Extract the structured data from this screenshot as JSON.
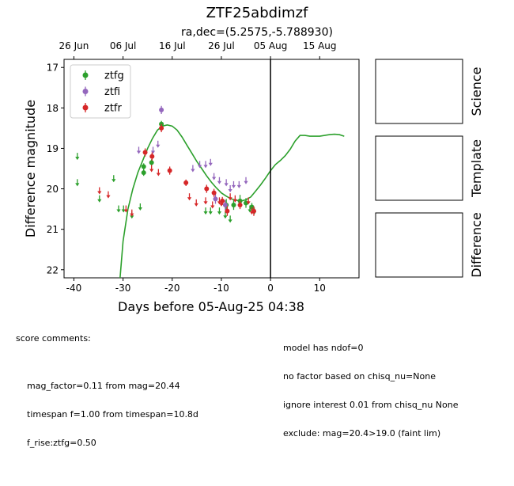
{
  "chart_data": {
    "type": "scatter",
    "title": "ZTF25abdimzf",
    "subtitle": "ra,dec=(5.2575,-5.788930)",
    "xlabel": "Days before 05-Aug-25 04:38",
    "ylabel": "Difference magnitude",
    "xlim": [
      -42,
      18
    ],
    "ylim": [
      22.2,
      16.8
    ],
    "y_inverted": true,
    "xticks": [
      -40,
      -30,
      -20,
      -10,
      0,
      10
    ],
    "yticks": [
      17,
      18,
      19,
      20,
      21,
      22
    ],
    "top_axis_labels": [
      "26 Jun",
      "06 Jul",
      "16 Jul",
      "26 Jul",
      "05 Aug",
      "15 Aug"
    ],
    "top_axis_positions": [
      -40,
      -30,
      -20,
      -10,
      0,
      10
    ],
    "vline_x": 0,
    "legend_position": "upper-left",
    "legend": [
      "ztfg",
      "ztfi",
      "ztfr"
    ],
    "colors": {
      "ztfg": "#2ca02c",
      "ztfi": "#9467bd",
      "ztfr": "#d62728",
      "model": "#2ca02c"
    },
    "series": [
      {
        "name": "ztfg",
        "upper_limits": [
          [
            -39.3,
            19.15
          ],
          [
            -39.3,
            19.8
          ],
          [
            -34.8,
            20.2
          ],
          [
            -31.9,
            19.7
          ],
          [
            -30.9,
            20.45
          ],
          [
            -29.9,
            20.45
          ],
          [
            -28.2,
            20.6
          ],
          [
            -26.5,
            20.4
          ],
          [
            -13.2,
            20.5
          ],
          [
            -12.2,
            20.5
          ],
          [
            -10.4,
            20.5
          ],
          [
            -9.2,
            20.6
          ],
          [
            -8.2,
            20.7
          ],
          [
            -4.2,
            20.45
          ],
          [
            -3.3,
            20.5
          ]
        ],
        "detections": [
          [
            -25.8,
            19.45,
            0.08
          ],
          [
            -25.8,
            19.6,
            0.08
          ],
          [
            -24.2,
            19.35,
            0.08
          ],
          [
            -22.2,
            18.4,
            0.08
          ],
          [
            -9.0,
            20.4,
            0.15
          ],
          [
            -7.5,
            20.4,
            0.12
          ],
          [
            -6.2,
            20.3,
            0.15
          ],
          [
            -5.0,
            20.35,
            0.12
          ],
          [
            -3.8,
            20.45,
            0.1
          ]
        ]
      },
      {
        "name": "ztfi",
        "upper_limits": [
          [
            -26.8,
            19.0
          ],
          [
            -23.9,
            19.0
          ],
          [
            -22.9,
            18.85
          ],
          [
            -15.8,
            19.45
          ],
          [
            -14.4,
            19.35
          ],
          [
            -13.2,
            19.35
          ],
          [
            -12.2,
            19.3
          ],
          [
            -11.5,
            19.65
          ],
          [
            -10.4,
            19.75
          ],
          [
            -9.0,
            19.8
          ],
          [
            -8.2,
            19.95
          ],
          [
            -7.5,
            19.85
          ],
          [
            -6.4,
            19.85
          ],
          [
            -5.0,
            19.75
          ]
        ],
        "detections": [
          [
            -22.2,
            18.05,
            0.1
          ],
          [
            -11.2,
            20.25,
            0.12
          ],
          [
            -9.2,
            20.4,
            0.12
          ]
        ]
      },
      {
        "name": "ztfr",
        "upper_limits": [
          [
            -34.8,
            20.0
          ],
          [
            -33.0,
            20.1
          ],
          [
            -29.4,
            20.45
          ],
          [
            -28.2,
            20.55
          ],
          [
            -24.2,
            19.45
          ],
          [
            -22.8,
            19.55
          ],
          [
            -16.5,
            20.15
          ],
          [
            -15.1,
            20.3
          ],
          [
            -13.2,
            20.25
          ],
          [
            -11.8,
            20.35
          ],
          [
            -10.4,
            20.25
          ],
          [
            -10.0,
            20.3
          ],
          [
            -8.2,
            20.15
          ],
          [
            -7.2,
            20.2
          ],
          [
            -4.5,
            20.25
          ],
          [
            -3.8,
            20.5
          ]
        ],
        "detections": [
          [
            -25.5,
            19.1,
            0.1
          ],
          [
            -24.1,
            19.2,
            0.1
          ],
          [
            -22.2,
            18.5,
            0.1
          ],
          [
            -20.5,
            19.55,
            0.1
          ],
          [
            -17.2,
            19.85,
            0.08
          ],
          [
            -13.0,
            20.0,
            0.1
          ],
          [
            -11.5,
            20.1,
            0.1
          ],
          [
            -9.8,
            20.3,
            0.1
          ],
          [
            -8.8,
            20.55,
            0.12
          ],
          [
            -6.2,
            20.4,
            0.1
          ],
          [
            -3.4,
            20.55,
            0.12
          ]
        ]
      }
    ],
    "model_curve": [
      [
        -30.8,
        22.5
      ],
      [
        -30.0,
        21.3
      ],
      [
        -29.0,
        20.5
      ],
      [
        -28.0,
        20.0
      ],
      [
        -27.0,
        19.6
      ],
      [
        -26.0,
        19.3
      ],
      [
        -25.0,
        19.0
      ],
      [
        -24.0,
        18.75
      ],
      [
        -23.0,
        18.55
      ],
      [
        -22.0,
        18.45
      ],
      [
        -21.0,
        18.42
      ],
      [
        -20.0,
        18.45
      ],
      [
        -19.0,
        18.55
      ],
      [
        -18.0,
        18.72
      ],
      [
        -17.0,
        18.92
      ],
      [
        -16.0,
        19.12
      ],
      [
        -15.0,
        19.32
      ],
      [
        -14.0,
        19.5
      ],
      [
        -13.0,
        19.68
      ],
      [
        -12.0,
        19.84
      ],
      [
        -11.0,
        19.98
      ],
      [
        -10.0,
        20.1
      ],
      [
        -9.0,
        20.18
      ],
      [
        -8.0,
        20.25
      ],
      [
        -7.0,
        20.28
      ],
      [
        -6.0,
        20.3
      ],
      [
        -5.0,
        20.27
      ],
      [
        -4.0,
        20.2
      ],
      [
        -3.0,
        20.05
      ],
      [
        -2.0,
        19.9
      ],
      [
        -1.0,
        19.73
      ],
      [
        0.0,
        19.55
      ],
      [
        1.0,
        19.4
      ],
      [
        2.0,
        19.3
      ],
      [
        3.0,
        19.18
      ],
      [
        4.0,
        19.02
      ],
      [
        5.0,
        18.82
      ],
      [
        6.0,
        18.68
      ],
      [
        7.0,
        18.68
      ],
      [
        8.0,
        18.7
      ],
      [
        9.0,
        18.7
      ],
      [
        10.0,
        18.7
      ],
      [
        11.0,
        18.68
      ],
      [
        12.0,
        18.66
      ],
      [
        13.0,
        18.65
      ],
      [
        14.0,
        18.66
      ],
      [
        15.0,
        18.7
      ]
    ]
  },
  "panels": [
    {
      "label": "Science"
    },
    {
      "label": "Template"
    },
    {
      "label": "Difference"
    }
  ],
  "notes_left": {
    "heading": "score comments:",
    "lines": [
      "mag_factor=0.11 from mag=20.44",
      "timespan f=1.00 from timespan=10.8d",
      "f_rise:ztfg=0.50"
    ]
  },
  "notes_right": {
    "lines": [
      "model has ndof=0",
      "no factor based on chisq_nu=None",
      "ignore interest 0.01 from chisq_nu None",
      "exclude: mag=20.4>19.0 (faint lim)"
    ]
  }
}
